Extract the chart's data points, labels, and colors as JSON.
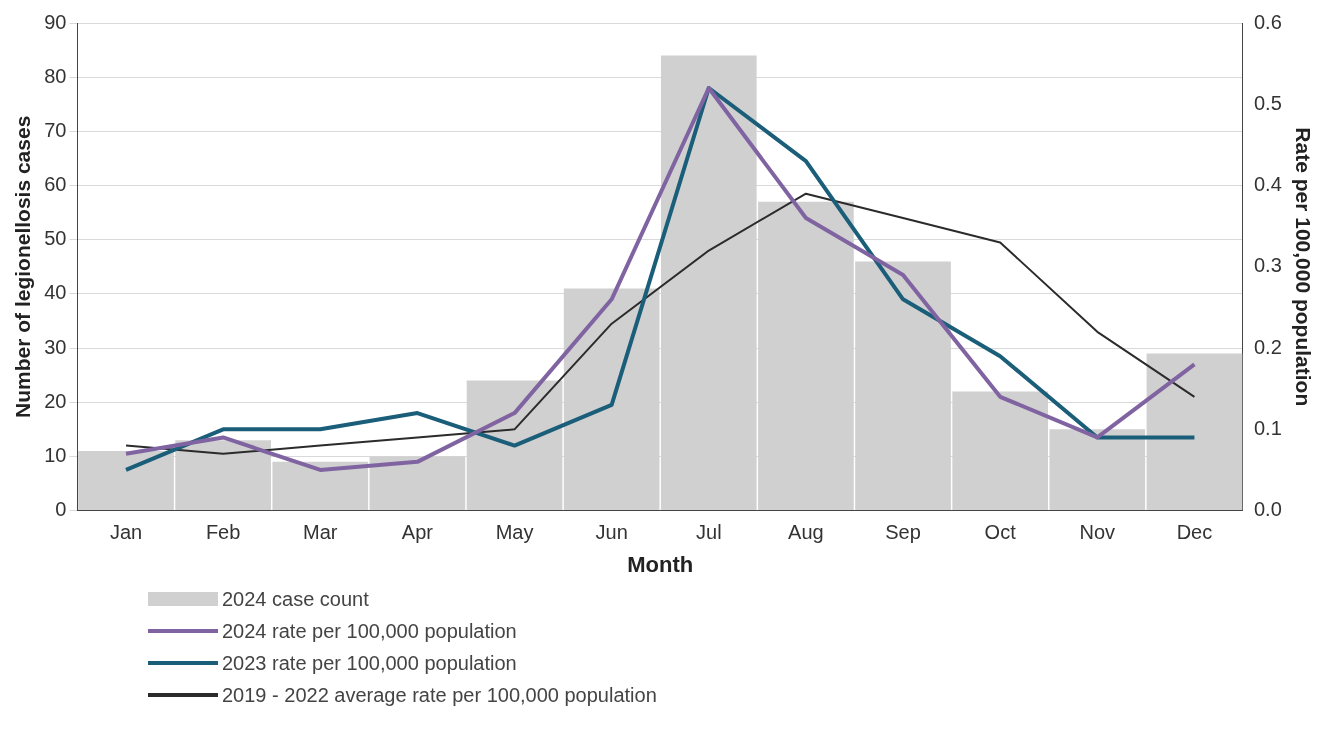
{
  "chart_data": {
    "type": "bar",
    "xlabel": "Month",
    "ylabel": "Number of legionellosis cases",
    "y2label": "Rate per 100,000 population",
    "categories": [
      "Jan",
      "Feb",
      "Mar",
      "Apr",
      "May",
      "Jun",
      "Jul",
      "Aug",
      "Sep",
      "Oct",
      "Nov",
      "Dec"
    ],
    "series": [
      {
        "name": "2024 case count",
        "color": "#d0d0d0",
        "values": [
          11,
          13,
          9,
          10,
          24,
          41,
          84,
          57,
          46,
          22,
          15,
          29
        ]
      },
      {
        "name": "2024 rate per 100,000 population",
        "type": "line",
        "axis": "y2",
        "color": "#8064a2",
        "values": [
          0.07,
          0.09,
          0.05,
          0.06,
          0.12,
          0.26,
          0.52,
          0.36,
          0.29,
          0.14,
          0.09,
          0.18
        ]
      },
      {
        "name": "2023 rate per 100,000 population",
        "type": "line",
        "axis": "y2",
        "color": "#1b5e7a",
        "values": [
          0.05,
          0.1,
          0.1,
          0.12,
          0.08,
          0.13,
          0.52,
          0.43,
          0.26,
          0.19,
          0.09,
          0.09
        ]
      },
      {
        "name": "2019 - 2022 average rate per 100,000 population",
        "type": "line",
        "axis": "y2",
        "color": "#2b2b2b",
        "values": [
          0.08,
          0.07,
          0.08,
          0.09,
          0.1,
          0.23,
          0.32,
          0.39,
          0.36,
          0.33,
          0.22,
          0.14
        ]
      }
    ],
    "ylim": [
      0,
      90
    ],
    "yticks": [
      0,
      10,
      20,
      30,
      40,
      50,
      60,
      70,
      80,
      90
    ],
    "y2lim": [
      0,
      0.6
    ],
    "y2ticks": [
      {
        "value": 0,
        "label": "0.0"
      },
      {
        "value": 0.1,
        "label": "0.1"
      },
      {
        "value": 0.2,
        "label": "0.2"
      },
      {
        "value": 0.3,
        "label": "0.3"
      },
      {
        "value": 0.4,
        "label": "0.4"
      },
      {
        "value": 0.5,
        "label": "0.5"
      },
      {
        "value": 0.6,
        "label": "0.6"
      }
    ],
    "grid": "y",
    "legend": "bottom",
    "marker": "none"
  }
}
